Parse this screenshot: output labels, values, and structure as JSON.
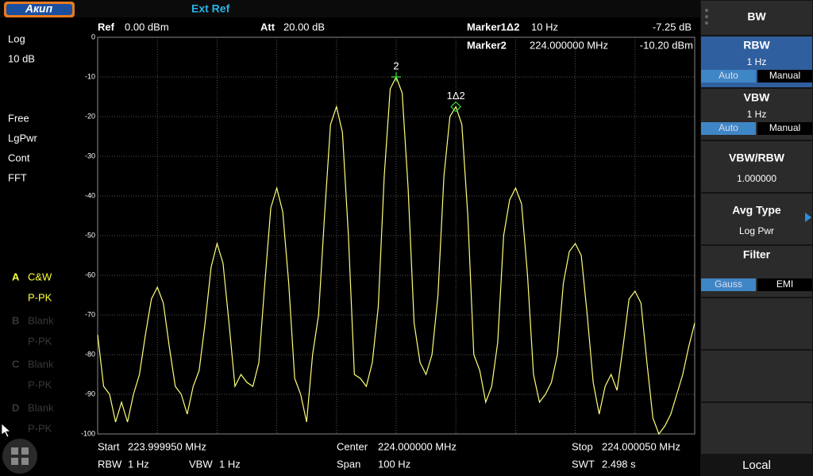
{
  "header": {
    "logo": "Акип",
    "ext_ref": "Ext Ref"
  },
  "info": {
    "ref_label": "Ref",
    "ref_value": "0.00 dBm",
    "att_label": "Att",
    "att_value": "20.00 dB",
    "marker1_label": "Marker1Δ2",
    "marker1_x": "10 Hz",
    "marker1_y": "-7.25 dB",
    "marker2_label": "Marker2",
    "marker2_x": "224.000000 MHz",
    "marker2_y": "-10.20 dBm"
  },
  "left_panel": {
    "scale": "Log",
    "div": "10 dB",
    "items": [
      "Free",
      "LgPwr",
      "Cont",
      "FFT"
    ],
    "traces": [
      {
        "id": "A",
        "mode": "C&W",
        "detector": "P-PK",
        "active": true
      },
      {
        "id": "B",
        "mode": "Blank",
        "detector": "P-PK",
        "active": false
      },
      {
        "id": "C",
        "mode": "Blank",
        "detector": "P-PK",
        "active": false
      },
      {
        "id": "D",
        "mode": "Blank",
        "detector": "P-PK",
        "active": false
      }
    ]
  },
  "bottom": [
    {
      "label": "Start",
      "value": "223.999950 MHz"
    },
    {
      "label": "Center",
      "value": "224.000000 MHz"
    },
    {
      "label": "Stop",
      "value": "224.000050 MHz"
    },
    {
      "label": "RBW",
      "value": "1 Hz"
    },
    {
      "label": "VBW",
      "value": "1 Hz"
    },
    {
      "label": "Span",
      "value": "100 Hz"
    },
    {
      "label": "SWT",
      "value": "2.498 s"
    }
  ],
  "menu": {
    "title": "BW",
    "footer": "Local",
    "buttons": [
      {
        "label": "RBW",
        "value": "1 Hz",
        "options": [
          "Auto",
          "Manual"
        ],
        "selected": 0,
        "highlighted": true
      },
      {
        "label": "VBW",
        "value": "1 Hz",
        "options": [
          "Auto",
          "Manual"
        ],
        "selected": 0
      },
      {
        "label": "VBW/RBW",
        "value": "1.000000"
      },
      {
        "label": "Avg Type",
        "value": "Log Pwr",
        "submenu": true
      },
      {
        "label": "Filter",
        "options": [
          "Gauss",
          "EMI"
        ],
        "selected": 0
      }
    ]
  },
  "chart_data": {
    "type": "line",
    "color": "#ffff7a",
    "xlim": [
      223.99995,
      224.00005
    ],
    "ylim": [
      -100,
      0
    ],
    "yticks": [
      0,
      -10,
      -20,
      -30,
      -40,
      -50,
      -60,
      -70,
      -80,
      -90,
      -100
    ],
    "grid": true,
    "x": [
      223.99995,
      223.999951,
      223.999952,
      223.999953,
      223.999954,
      223.999955,
      223.999956,
      223.999957,
      223.999958,
      223.999959,
      223.99996,
      223.999961,
      223.999962,
      223.999963,
      223.999964,
      223.999965,
      223.999966,
      223.999967,
      223.999968,
      223.999969,
      223.99997,
      223.999971,
      223.999972,
      223.999973,
      223.999974,
      223.999975,
      223.999976,
      223.999977,
      223.999978,
      223.999979,
      223.99998,
      223.999981,
      223.999982,
      223.999983,
      223.999984,
      223.999985,
      223.999986,
      223.999987,
      223.999988,
      223.999989,
      223.99999,
      223.999991,
      223.999992,
      223.999993,
      223.999994,
      223.999995,
      223.999996,
      223.999997,
      223.999998,
      223.999999,
      224.0,
      224.000001,
      224.000002,
      224.000003,
      224.000004,
      224.000005,
      224.000006,
      224.000007,
      224.000008,
      224.000009,
      224.00001,
      224.000011,
      224.000012,
      224.000013,
      224.000014,
      224.000015,
      224.000016,
      224.000017,
      224.000018,
      224.000019,
      224.00002,
      224.000021,
      224.000022,
      224.000023,
      224.000024,
      224.000025,
      224.000026,
      224.000027,
      224.000028,
      224.000029,
      224.00003,
      224.000031,
      224.000032,
      224.000033,
      224.000034,
      224.000035,
      224.000036,
      224.000037,
      224.000038,
      224.000039,
      224.00004,
      224.000041,
      224.000042,
      224.000043,
      224.000044,
      224.000045,
      224.000046,
      224.000047,
      224.000048,
      224.000049,
      224.00005
    ],
    "values": [
      -75,
      -88,
      -90,
      -97,
      -92,
      -97,
      -90,
      -85,
      -75,
      -66,
      -63,
      -67,
      -78,
      -88,
      -90,
      -95,
      -88,
      -84,
      -72,
      -58,
      -52,
      -57,
      -72,
      -88,
      -85,
      -87,
      -88,
      -82,
      -62,
      -43,
      -38,
      -44,
      -62,
      -86,
      -90,
      -97,
      -80,
      -70,
      -45,
      -22,
      -17.5,
      -24,
      -50,
      -85,
      -86,
      -88,
      -82,
      -68,
      -35,
      -13,
      -10,
      -14,
      -38,
      -72,
      -82,
      -85,
      -80,
      -65,
      -35,
      -20,
      -17.5,
      -22,
      -45,
      -80,
      -84,
      -92,
      -88,
      -77,
      -50,
      -41,
      -38,
      -42,
      -60,
      -85,
      -92,
      -90,
      -87,
      -80,
      -62,
      -54,
      -52,
      -55,
      -70,
      -87,
      -95,
      -88,
      -85,
      -89,
      -78,
      -66,
      -64,
      -67,
      -82,
      -96,
      -100,
      -98,
      -95,
      -90,
      -85,
      -78,
      -72
    ],
    "markers": [
      {
        "label": "2",
        "x": 224.0,
        "y": -10,
        "shape": "cross"
      },
      {
        "label": "1Δ2",
        "x": 224.00001,
        "y": -17.5,
        "shape": "diamond"
      }
    ]
  }
}
